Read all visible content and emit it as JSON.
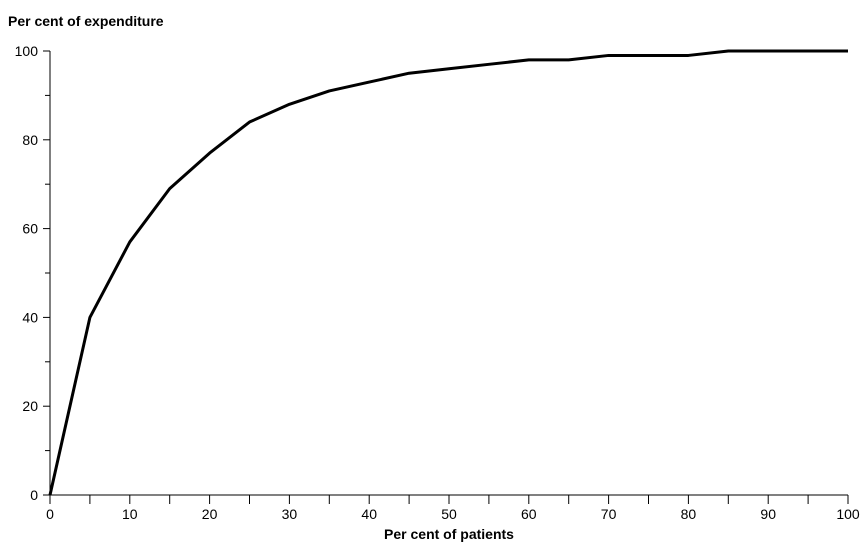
{
  "chart_data": {
    "type": "line",
    "title": "",
    "ylabel": "Per cent of expenditure",
    "xlabel": "Per cent of patients",
    "xlim": [
      0,
      100
    ],
    "ylim": [
      0,
      100
    ],
    "x_major_ticks": [
      0,
      10,
      20,
      30,
      40,
      50,
      60,
      70,
      80,
      90,
      100
    ],
    "x_minor_ticks": [
      5,
      15,
      25,
      35,
      45,
      55,
      65,
      75,
      85,
      95
    ],
    "y_major_ticks": [
      0,
      20,
      40,
      60,
      80,
      100
    ],
    "y_minor_ticks": [
      10,
      30,
      50,
      70,
      90
    ],
    "grid": false,
    "legend": "none",
    "line_color": "#000000",
    "series": [
      {
        "x": [
          0,
          5,
          10,
          15,
          20,
          25,
          30,
          35,
          40,
          45,
          50,
          55,
          60,
          65,
          70,
          75,
          80,
          85,
          90,
          95,
          100
        ],
        "y": [
          0,
          40,
          57,
          69,
          77,
          84,
          88,
          91,
          93,
          95,
          96,
          97,
          98,
          98,
          99,
          99,
          99,
          100,
          100,
          100,
          100
        ]
      }
    ]
  }
}
